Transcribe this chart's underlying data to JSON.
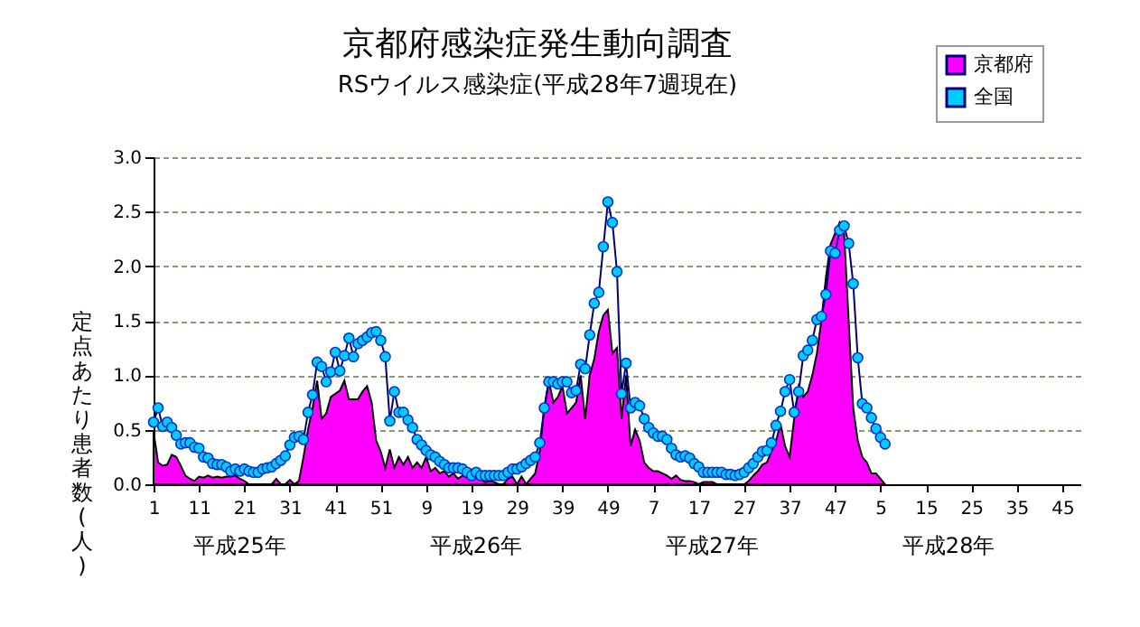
{
  "chart_data": {
    "type": "line",
    "title": "京都府感染症発生動向調査",
    "subtitle": "RSウイルス感染症(平成28年7週現在)",
    "ylabel": "定点あたり患者数(人)",
    "categories": [
      "1",
      null,
      null,
      null,
      null,
      null,
      null,
      null,
      null,
      null,
      "11",
      null,
      null,
      null,
      null,
      null,
      null,
      null,
      null,
      null,
      "21",
      null,
      null,
      null,
      null,
      null,
      null,
      null,
      null,
      null,
      "31",
      null,
      null,
      null,
      null,
      null,
      null,
      null,
      null,
      null,
      "41",
      null,
      null,
      null,
      null,
      null,
      null,
      null,
      null,
      null,
      "51",
      null,
      null,
      null,
      null,
      null,
      null,
      null,
      null,
      null,
      "9",
      null,
      null,
      null,
      null,
      null,
      null,
      null,
      null,
      null,
      "19",
      null,
      null,
      null,
      null,
      null,
      null,
      null,
      null,
      null,
      "29",
      null,
      null,
      null,
      null,
      null,
      null,
      null,
      null,
      null,
      "39",
      null,
      null,
      null,
      null,
      null,
      null,
      null,
      null,
      null,
      "49",
      null,
      null,
      null,
      null,
      null,
      null,
      null,
      null,
      null,
      "7",
      null,
      null,
      null,
      null,
      null,
      null,
      null,
      null,
      null,
      "17",
      null,
      null,
      null,
      null,
      null,
      null,
      null,
      null,
      null,
      "27",
      null,
      null,
      null,
      null,
      null,
      null,
      null,
      null,
      null,
      "37",
      null,
      null,
      null,
      null,
      null,
      null,
      null,
      null,
      null,
      "47",
      null,
      null,
      null,
      null,
      null,
      null,
      null,
      null,
      null,
      "5",
      null,
      null,
      null,
      null,
      null,
      null,
      null,
      null,
      null,
      "15",
      null,
      null,
      null,
      null,
      null,
      null,
      null,
      null,
      null,
      "25",
      null,
      null,
      null,
      null,
      null,
      null,
      null,
      null,
      null,
      "35",
      null,
      null,
      null,
      null,
      null,
      null,
      null,
      null,
      null,
      "45",
      null,
      null,
      null,
      null
    ],
    "series": [
      {
        "name": "京都府",
        "type": "area",
        "color": "#ff00ff",
        "values": [
          0.48,
          0.2,
          0.17,
          0.18,
          0.27,
          0.25,
          0.17,
          0.08,
          0.05,
          0.03,
          0.07,
          0.06,
          0.08,
          0.06,
          0.07,
          0.06,
          0.07,
          0.07,
          0.08,
          0.05,
          0.03,
          0,
          0,
          0,
          0,
          0,
          0,
          0.05,
          0,
          0,
          0.04,
          0,
          0.03,
          0.25,
          0.5,
          0.7,
          0.95,
          0.6,
          0.65,
          0.8,
          0.83,
          0.86,
          0.95,
          0.78,
          0.78,
          0.78,
          0.85,
          0.9,
          0.75,
          0.4,
          0.3,
          0.15,
          0.32,
          0.15,
          0.25,
          0.18,
          0.25,
          0.15,
          0.2,
          0.15,
          0.25,
          0.12,
          0.15,
          0.1,
          0.12,
          0.07,
          0.1,
          0.05,
          0.08,
          0.06,
          0.05,
          0.1,
          0.05,
          0.02,
          0.03,
          0.02,
          0,
          0,
          0.05,
          0.07,
          0,
          0.07,
          0,
          0.05,
          0.1,
          0.3,
          0.7,
          0.95,
          0.75,
          0.8,
          0.9,
          0.65,
          0.7,
          0.75,
          1.0,
          0.6,
          1.0,
          1.15,
          1.4,
          1.55,
          1.6,
          1.2,
          1.25,
          0.6,
          1.0,
          0.35,
          0.5,
          0.4,
          0.2,
          0.15,
          0.12,
          0.12,
          0.1,
          0.08,
          0.05,
          0.08,
          0.04,
          0.03,
          0.03,
          0.02,
          0,
          0.02,
          0.02,
          0.02,
          0,
          0,
          0,
          0,
          0,
          0,
          0,
          0.03,
          0.08,
          0.12,
          0.18,
          0.2,
          0.3,
          0.4,
          0.55,
          0.35,
          0.25,
          0.6,
          0.9,
          0.8,
          0.85,
          1.0,
          1.2,
          1.5,
          1.9,
          2.2,
          2.3,
          2.4,
          2.3,
          1.5,
          0.7,
          0.4,
          0.25,
          0.2,
          0.1,
          0.1,
          0.05,
          0,
          null,
          null,
          null,
          null,
          null,
          null,
          null,
          null,
          null,
          null,
          null,
          null,
          null,
          null,
          null,
          null,
          null,
          null,
          null,
          null,
          null,
          null,
          null,
          null,
          null,
          null,
          null,
          null,
          null,
          null,
          null,
          null,
          null,
          null,
          null,
          null,
          null,
          null,
          null,
          null,
          null,
          null,
          null
        ]
      },
      {
        "name": "全国",
        "color": "#00ccff",
        "marker": "circle",
        "values": [
          0.57,
          0.7,
          0.53,
          0.57,
          0.52,
          0.45,
          0.37,
          0.38,
          0.38,
          0.34,
          0.33,
          0.25,
          0.24,
          0.19,
          0.18,
          0.18,
          0.16,
          0.12,
          0.14,
          0.12,
          0.14,
          0.12,
          0.11,
          0.11,
          0.14,
          0.15,
          0.16,
          0.19,
          0.22,
          0.26,
          0.36,
          0.43,
          0.44,
          0.41,
          0.66,
          0.82,
          1.12,
          1.08,
          0.94,
          1.03,
          1.21,
          1.04,
          1.18,
          1.34,
          1.17,
          1.29,
          1.32,
          1.35,
          1.39,
          1.4,
          1.32,
          1.17,
          0.58,
          0.85,
          0.66,
          0.66,
          0.59,
          0.52,
          0.41,
          0.36,
          0.31,
          0.27,
          0.25,
          0.21,
          0.18,
          0.15,
          0.15,
          0.15,
          0.14,
          0.11,
          0.08,
          0.11,
          0.08,
          0.08,
          0.08,
          0.08,
          0.08,
          0.08,
          0.11,
          0.14,
          0.14,
          0.16,
          0.19,
          0.22,
          0.25,
          0.38,
          0.7,
          0.94,
          0.94,
          0.92,
          0.94,
          0.94,
          0.84,
          0.86,
          1.1,
          1.06,
          1.37,
          1.66,
          1.76,
          2.18,
          2.59,
          2.4,
          1.95,
          0.83,
          1.11,
          0.7,
          0.75,
          0.72,
          0.6,
          0.52,
          0.47,
          0.44,
          0.44,
          0.41,
          0.33,
          0.27,
          0.25,
          0.26,
          0.24,
          0.19,
          0.16,
          0.11,
          0.11,
          0.11,
          0.11,
          0.11,
          0.09,
          0.09,
          0.08,
          0.09,
          0.11,
          0.15,
          0.19,
          0.25,
          0.3,
          0.31,
          0.38,
          0.54,
          0.67,
          0.85,
          0.96,
          0.66,
          0.85,
          1.18,
          1.23,
          1.32,
          1.51,
          1.54,
          1.74,
          2.14,
          2.12,
          2.33,
          2.37,
          2.21,
          1.84,
          1.16,
          0.74,
          0.7,
          0.61,
          0.51,
          0.43,
          0.37,
          null,
          null,
          null,
          null,
          null,
          null,
          null,
          null,
          null,
          null,
          null,
          null,
          null,
          null,
          null,
          null,
          null,
          null,
          null,
          null,
          null,
          null,
          null,
          null,
          null,
          null,
          null,
          null,
          null,
          null,
          null,
          null,
          null,
          null,
          null,
          null,
          null,
          null,
          null,
          null,
          null,
          null,
          null
        ]
      }
    ],
    "ylim": [
      0,
      3
    ],
    "yticks": [
      {
        "value": 0,
        "label": "0.0"
      },
      {
        "value": 0.5,
        "label": "0.5"
      },
      {
        "value": 1,
        "label": "1.0"
      },
      {
        "value": 1.5,
        "label": "1.5"
      },
      {
        "value": 2,
        "label": "2.0"
      },
      {
        "value": 2.5,
        "label": "2.5"
      },
      {
        "value": 3,
        "label": "3.0"
      }
    ],
    "grid": "y",
    "legend": "top right",
    "annotations": [
      "平成25年",
      "平成26年",
      "平成27年",
      "平成28年"
    ]
  }
}
